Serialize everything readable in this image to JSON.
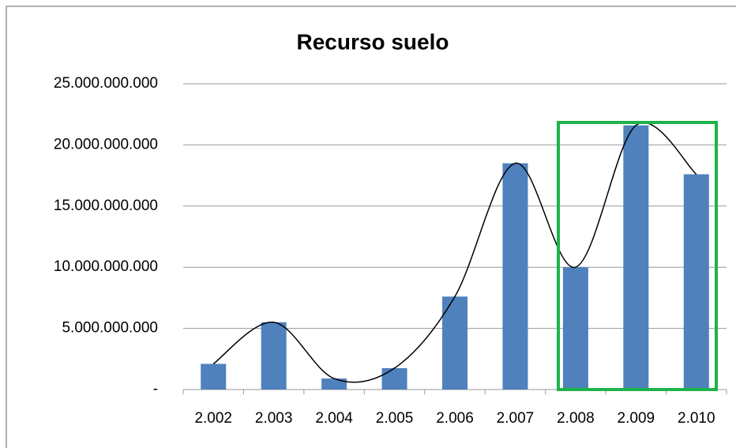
{
  "chart_data": {
    "type": "bar",
    "title": "Recurso suelo",
    "categories": [
      "2.002",
      "2.003",
      "2.004",
      "2.005",
      "2.006",
      "2.007",
      "2.008",
      "2.009",
      "2.010"
    ],
    "values": [
      2100000000,
      5500000000,
      900000000,
      1750000000,
      7600000000,
      18500000000,
      10000000000,
      21600000000,
      17600000000
    ],
    "color": "#4f81bd",
    "trendline": true,
    "ylim": [
      0,
      25000000000
    ],
    "yticks": [
      {
        "value": 0,
        "label": "-"
      },
      {
        "value": 5000000000,
        "label": "5.000.000.000"
      },
      {
        "value": 10000000000,
        "label": "10.000.000.000"
      },
      {
        "value": 15000000000,
        "label": "15.000.000.000"
      },
      {
        "value": 20000000000,
        "label": "20.000.000.000"
      },
      {
        "value": 25000000000,
        "label": "25.000.000.000"
      }
    ],
    "grid": true
  }
}
